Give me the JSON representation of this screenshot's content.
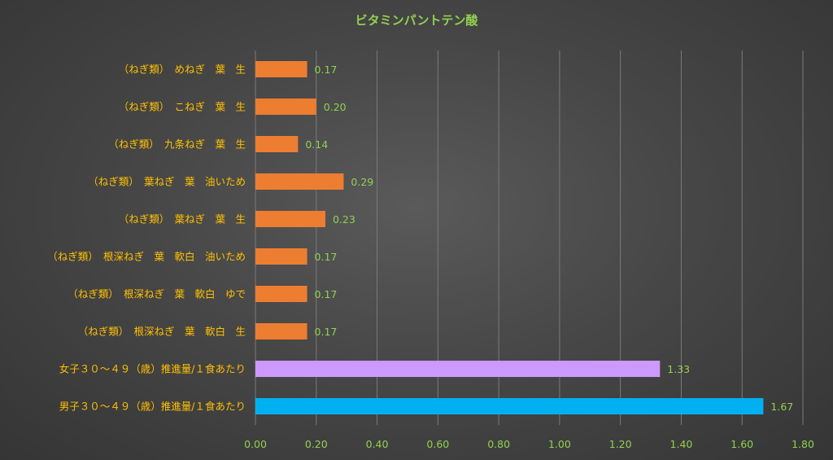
{
  "chart_data": {
    "type": "bar",
    "orientation": "horizontal",
    "title": "ビタミンパントテン酸",
    "xlim": [
      0,
      1.8
    ],
    "x_ticks": [
      "0.00",
      "0.20",
      "0.40",
      "0.60",
      "0.80",
      "1.00",
      "1.20",
      "1.40",
      "1.60",
      "1.80"
    ],
    "grid": true,
    "categories": [
      "（ねぎ類）　めねぎ　葉　生",
      "（ねぎ類）　こねぎ　葉　生",
      "（ねぎ類）　九条ねぎ　葉　生",
      "（ねぎ類）　葉ねぎ　葉　油いため",
      "（ねぎ類）　葉ねぎ　葉　生",
      "（ねぎ類）　根深ねぎ　葉　軟白　油いため",
      "（ねぎ類）　根深ねぎ　葉　軟白　ゆで",
      "（ねぎ類）　根深ねぎ　葉　軟白　生",
      "女子３０～４９（歳）推進量/１食あたり",
      "男子３０～４９（歳）推進量/１食あたり"
    ],
    "values": [
      0.17,
      0.2,
      0.14,
      0.29,
      0.23,
      0.17,
      0.17,
      0.17,
      1.33,
      1.67
    ],
    "value_labels": [
      "0.17",
      "0.20",
      "0.14",
      "0.29",
      "0.23",
      "0.17",
      "0.17",
      "0.17",
      "1.33",
      "1.67"
    ],
    "bar_colors": [
      "#ed7d31",
      "#ed7d31",
      "#ed7d31",
      "#ed7d31",
      "#ed7d31",
      "#ed7d31",
      "#ed7d31",
      "#ed7d31",
      "#cc99ff",
      "#00b0f0"
    ]
  }
}
